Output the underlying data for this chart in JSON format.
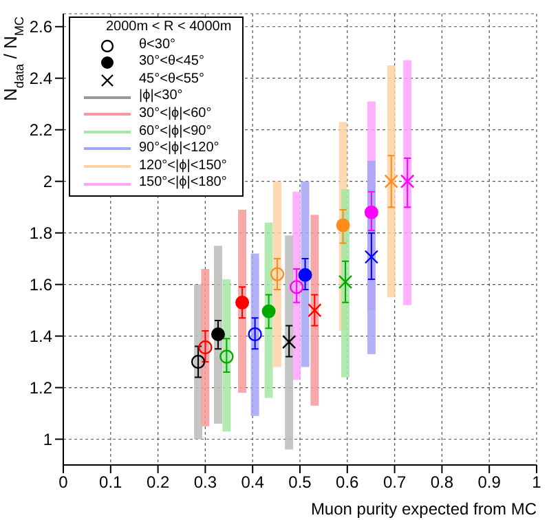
{
  "chart_data": {
    "type": "scatter",
    "xlabel": "Muon purity expected from MC",
    "ylabel": "N$_{data}$ / N$_{MC}$",
    "legend_title": "2000m < R < 4000m",
    "legend": "top left",
    "grid": true,
    "xlim": [
      0,
      1
    ],
    "xticks": [
      0,
      0.1,
      0.2,
      0.3,
      0.4,
      0.5,
      0.6,
      0.7,
      0.8,
      0.9,
      1
    ],
    "ylim": [
      0.9,
      2.65
    ],
    "yticks": [
      1,
      1.2,
      1.4,
      1.6,
      1.8,
      2,
      2.2,
      2.4,
      2.6
    ],
    "series": [
      {
        "type": "bar",
        "x": [
          0.285,
          0.3,
          0.345,
          0.405,
          0.452,
          0.493
        ],
        "base": [
          1.0,
          1.05,
          1.03,
          1.09,
          1.28,
          1.23
        ],
        "values": [
          0.6,
          0.61,
          0.59,
          0.63,
          0.72,
          0.73
        ],
        "colors": [
          "#bbbbbb",
          "#f59a9a",
          "#a5e6a5",
          "#a5a5f5",
          "#ffd2a5",
          "#ffa5ff"
        ]
      },
      {
        "type": "bar",
        "x": [
          0.327,
          0.378,
          0.434,
          0.511,
          0.591,
          0.651
        ],
        "base": [
          1.06,
          1.18,
          1.16,
          1.28,
          1.42,
          1.5
        ],
        "values": [
          0.69,
          0.71,
          0.68,
          0.72,
          0.81,
          0.81
        ],
        "colors": [
          "#bbbbbb",
          "#f59a9a",
          "#a5e6a5",
          "#a5a5f5",
          "#ffd2a5",
          "#ffa5ff"
        ]
      },
      {
        "type": "bar",
        "x": [
          0.477,
          0.531,
          0.596,
          0.651,
          0.693,
          0.727
        ],
        "base": [
          0.96,
          1.13,
          1.24,
          1.33,
          1.55,
          1.52
        ],
        "values": [
          0.83,
          0.74,
          0.73,
          0.75,
          0.9,
          0.95
        ],
        "colors": [
          "#bbbbbb",
          "#f59a9a",
          "#a5e6a5",
          "#a5a5f5",
          "#ffd2a5",
          "#ffa5ff"
        ]
      },
      {
        "name": "θ<30°",
        "color": "#000000",
        "marker": "circle-open",
        "x": [
          0.285,
          0.3,
          0.345,
          0.405,
          0.452,
          0.493
        ],
        "values": [
          1.3,
          1.356,
          1.32,
          1.407,
          1.64,
          1.59
        ],
        "colors": [
          "#000000",
          "#ff0000",
          "#00aa00",
          "#0000ff",
          "#ff8c1a",
          "#ff00ff"
        ],
        "errors": [
          [
            1.24,
            1.36
          ],
          [
            1.3,
            1.42
          ],
          [
            1.26,
            1.39
          ],
          [
            1.35,
            1.47
          ],
          [
            1.58,
            1.7
          ],
          [
            1.53,
            1.66
          ]
        ]
      },
      {
        "name": "30°<θ<45°",
        "color": "#000000",
        "marker": "circle",
        "x": [
          0.327,
          0.378,
          0.434,
          0.511,
          0.591,
          0.651
        ],
        "values": [
          1.407,
          1.53,
          1.496,
          1.637,
          1.83,
          1.88
        ],
        "colors": [
          "#000000",
          "#ff0000",
          "#00aa00",
          "#0000ff",
          "#ff8c1a",
          "#ff00ff"
        ],
        "errors": [
          [
            1.35,
            1.46
          ],
          [
            1.47,
            1.59
          ],
          [
            1.43,
            1.56
          ],
          [
            1.58,
            1.7
          ],
          [
            1.76,
            1.89
          ],
          [
            1.81,
            1.96
          ]
        ]
      },
      {
        "name": "45°<θ<55°",
        "color": "#000000",
        "marker": "cross",
        "x": [
          0.477,
          0.531,
          0.596,
          0.651,
          0.693,
          0.727
        ],
        "values": [
          1.377,
          1.5,
          1.61,
          1.707,
          2.0,
          2.0
        ],
        "colors": [
          "#000000",
          "#ff0000",
          "#00aa00",
          "#0000ff",
          "#ff8c1a",
          "#ff00ff"
        ],
        "errors": [
          [
            1.32,
            1.44
          ],
          [
            1.44,
            1.56
          ],
          [
            1.53,
            1.69
          ],
          [
            1.62,
            1.8
          ],
          [
            1.9,
            2.1
          ],
          [
            1.9,
            2.09
          ]
        ]
      },
      {
        "name": "|ϕ|<30°",
        "color": "#999999",
        "type": "line"
      },
      {
        "name": "30°<|ϕ|<60°",
        "color": "#f59a9a",
        "type": "line"
      },
      {
        "name": "60°<|ϕ|<90°",
        "color": "#a5e6a5",
        "type": "line"
      },
      {
        "name": "90°<|ϕ|<120°",
        "color": "#a5a5f5",
        "type": "line"
      },
      {
        "name": "120°<|ϕ|<150°",
        "color": "#ffd2a5",
        "type": "line"
      },
      {
        "name": "150°<|ϕ|<180°",
        "color": "#ffa5ff",
        "type": "line"
      }
    ]
  }
}
